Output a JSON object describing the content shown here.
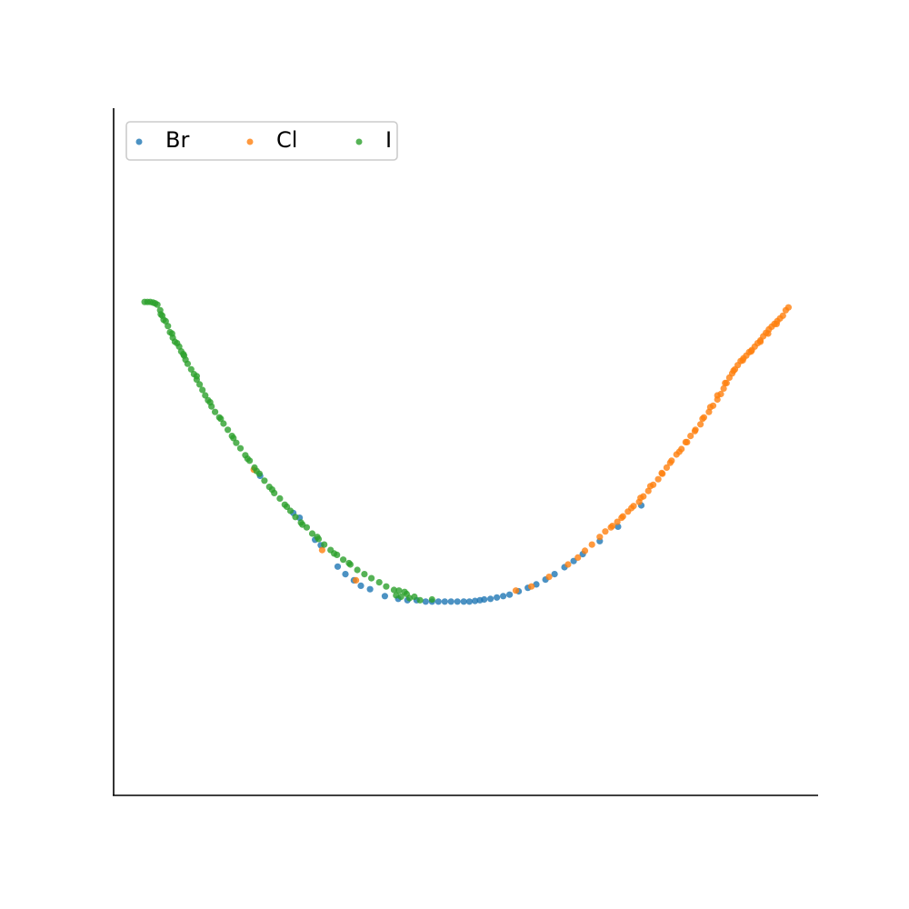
{
  "chart_data": {
    "type": "scatter",
    "title": "",
    "xlabel": "",
    "ylabel": "",
    "xlim": [
      0,
      1
    ],
    "ylim": [
      0,
      1
    ],
    "grid": false,
    "show_ticks": false,
    "legend": {
      "placement": "top-left",
      "columns": 3
    },
    "series": [
      {
        "name": "Br",
        "color": "#1f77b4",
        "points": [
          [
            0.208,
            0.465
          ],
          [
            0.255,
            0.411
          ],
          [
            0.286,
            0.372
          ],
          [
            0.318,
            0.333
          ],
          [
            0.329,
            0.322
          ],
          [
            0.351,
            0.305
          ],
          [
            0.385,
            0.29
          ],
          [
            0.404,
            0.286
          ],
          [
            0.417,
            0.284
          ],
          [
            0.43,
            0.284
          ],
          [
            0.443,
            0.282
          ],
          [
            0.452,
            0.282
          ],
          [
            0.461,
            0.282
          ],
          [
            0.47,
            0.282
          ],
          [
            0.479,
            0.282
          ],
          [
            0.488,
            0.282
          ],
          [
            0.497,
            0.282
          ],
          [
            0.513,
            0.283
          ],
          [
            0.52,
            0.284
          ],
          [
            0.526,
            0.285
          ],
          [
            0.535,
            0.286
          ],
          [
            0.544,
            0.288
          ],
          [
            0.553,
            0.29
          ],
          [
            0.562,
            0.292
          ],
          [
            0.575,
            0.297
          ],
          [
            0.588,
            0.302
          ],
          [
            0.6,
            0.307
          ],
          [
            0.613,
            0.314
          ],
          [
            0.626,
            0.322
          ],
          [
            0.64,
            0.332
          ],
          [
            0.653,
            0.341
          ],
          [
            0.666,
            0.351
          ],
          [
            0.69,
            0.37
          ],
          [
            0.716,
            0.391
          ],
          [
            0.749,
            0.422
          ],
          [
            0.264,
            0.404
          ],
          [
            0.294,
            0.364
          ],
          [
            0.341,
            0.313
          ],
          [
            0.364,
            0.3
          ],
          [
            0.505,
            0.282
          ]
        ]
      },
      {
        "name": "Cl",
        "color": "#ff7f0e",
        "points": [
          [
            0.199,
            0.474
          ],
          [
            0.296,
            0.357
          ],
          [
            0.344,
            0.313
          ],
          [
            0.571,
            0.298
          ],
          [
            0.593,
            0.304
          ],
          [
            0.618,
            0.318
          ],
          [
            0.645,
            0.336
          ],
          [
            0.659,
            0.346
          ],
          [
            0.669,
            0.356
          ],
          [
            0.679,
            0.365
          ],
          [
            0.69,
            0.376
          ],
          [
            0.698,
            0.384
          ],
          [
            0.708,
            0.392
          ],
          [
            0.715,
            0.398
          ],
          [
            0.723,
            0.406
          ],
          [
            0.73,
            0.413
          ],
          [
            0.738,
            0.421
          ],
          [
            0.746,
            0.427
          ],
          [
            0.752,
            0.435
          ],
          [
            0.759,
            0.443
          ],
          [
            0.766,
            0.452
          ],
          [
            0.773,
            0.46
          ],
          [
            0.779,
            0.468
          ],
          [
            0.785,
            0.477
          ],
          [
            0.792,
            0.487
          ],
          [
            0.799,
            0.496
          ],
          [
            0.806,
            0.504
          ],
          [
            0.812,
            0.514
          ],
          [
            0.819,
            0.523
          ],
          [
            0.826,
            0.532
          ],
          [
            0.833,
            0.54
          ],
          [
            0.838,
            0.55
          ],
          [
            0.845,
            0.558
          ],
          [
            0.851,
            0.567
          ],
          [
            0.857,
            0.576
          ],
          [
            0.862,
            0.584
          ],
          [
            0.866,
            0.592
          ],
          [
            0.87,
            0.6
          ],
          [
            0.874,
            0.608
          ],
          [
            0.878,
            0.614
          ],
          [
            0.882,
            0.62
          ],
          [
            0.886,
            0.626
          ],
          [
            0.89,
            0.632
          ],
          [
            0.894,
            0.636
          ],
          [
            0.898,
            0.64
          ],
          [
            0.902,
            0.645
          ],
          [
            0.906,
            0.648
          ],
          [
            0.91,
            0.653
          ],
          [
            0.914,
            0.658
          ],
          [
            0.918,
            0.662
          ],
          [
            0.922,
            0.668
          ],
          [
            0.926,
            0.673
          ],
          [
            0.93,
            0.678
          ],
          [
            0.934,
            0.682
          ],
          [
            0.938,
            0.686
          ],
          [
            0.942,
            0.69
          ],
          [
            0.946,
            0.694
          ],
          [
            0.95,
            0.698
          ],
          [
            0.954,
            0.706
          ],
          [
            0.958,
            0.71
          ],
          [
            0.941,
            0.686
          ],
          [
            0.929,
            0.672
          ],
          [
            0.918,
            0.66
          ],
          [
            0.905,
            0.646
          ],
          [
            0.893,
            0.633
          ],
          [
            0.88,
            0.618
          ],
          [
            0.868,
            0.6
          ],
          [
            0.857,
            0.582
          ],
          [
            0.847,
            0.565
          ],
          [
            0.836,
            0.548
          ],
          [
            0.825,
            0.53
          ],
          [
            0.814,
            0.514
          ],
          [
            0.803,
            0.5
          ],
          [
            0.79,
            0.484
          ],
          [
            0.778,
            0.469
          ],
          [
            0.762,
            0.45
          ],
          [
            0.748,
            0.433
          ],
          [
            0.735,
            0.418
          ],
          [
            0.721,
            0.404
          ],
          [
            0.706,
            0.39
          ]
        ]
      },
      {
        "name": "I",
        "color": "#2ca02c",
        "points": [
          [
            0.044,
            0.718
          ],
          [
            0.048,
            0.718
          ],
          [
            0.052,
            0.718
          ],
          [
            0.056,
            0.717
          ],
          [
            0.059,
            0.716
          ],
          [
            0.062,
            0.714
          ],
          [
            0.066,
            0.706
          ],
          [
            0.069,
            0.698
          ],
          [
            0.071,
            0.692
          ],
          [
            0.074,
            0.69
          ],
          [
            0.077,
            0.683
          ],
          [
            0.08,
            0.674
          ],
          [
            0.084,
            0.666
          ],
          [
            0.087,
            0.66
          ],
          [
            0.09,
            0.658
          ],
          [
            0.093,
            0.653
          ],
          [
            0.096,
            0.646
          ],
          [
            0.099,
            0.642
          ],
          [
            0.102,
            0.634
          ],
          [
            0.105,
            0.628
          ],
          [
            0.11,
            0.62
          ],
          [
            0.114,
            0.613
          ],
          [
            0.118,
            0.605
          ],
          [
            0.122,
            0.598
          ],
          [
            0.126,
            0.59
          ],
          [
            0.13,
            0.582
          ],
          [
            0.134,
            0.575
          ],
          [
            0.139,
            0.566
          ],
          [
            0.144,
            0.558
          ],
          [
            0.15,
            0.55
          ],
          [
            0.156,
            0.541
          ],
          [
            0.162,
            0.532
          ],
          [
            0.168,
            0.523
          ],
          [
            0.174,
            0.513
          ],
          [
            0.18,
            0.505
          ],
          [
            0.187,
            0.495
          ],
          [
            0.193,
            0.487
          ],
          [
            0.2,
            0.477
          ],
          [
            0.207,
            0.468
          ],
          [
            0.214,
            0.458
          ],
          [
            0.221,
            0.449
          ],
          [
            0.228,
            0.44
          ],
          [
            0.236,
            0.432
          ],
          [
            0.243,
            0.423
          ],
          [
            0.251,
            0.414
          ],
          [
            0.258,
            0.405
          ],
          [
            0.266,
            0.397
          ],
          [
            0.274,
            0.39
          ],
          [
            0.282,
            0.381
          ],
          [
            0.291,
            0.373
          ],
          [
            0.299,
            0.365
          ],
          [
            0.308,
            0.357
          ],
          [
            0.317,
            0.35
          ],
          [
            0.326,
            0.343
          ],
          [
            0.336,
            0.336
          ],
          [
            0.346,
            0.328
          ],
          [
            0.356,
            0.322
          ],
          [
            0.366,
            0.316
          ],
          [
            0.377,
            0.31
          ],
          [
            0.387,
            0.304
          ],
          [
            0.398,
            0.299
          ],
          [
            0.401,
            0.291
          ],
          [
            0.408,
            0.289
          ],
          [
            0.416,
            0.293
          ],
          [
            0.42,
            0.287
          ],
          [
            0.427,
            0.289
          ],
          [
            0.435,
            0.284
          ],
          [
            0.452,
            0.285
          ],
          [
            0.405,
            0.298
          ],
          [
            0.413,
            0.296
          ],
          [
            0.067,
            0.7
          ],
          [
            0.083,
            0.672
          ],
          [
            0.1,
            0.64
          ],
          [
            0.118,
            0.61
          ],
          [
            0.137,
            0.572
          ],
          [
            0.152,
            0.548
          ],
          [
            0.17,
            0.52
          ],
          [
            0.19,
            0.49
          ],
          [
            0.203,
            0.472
          ],
          [
            0.225,
            0.445
          ],
          [
            0.246,
            0.42
          ],
          [
            0.268,
            0.394
          ],
          [
            0.289,
            0.376
          ],
          [
            0.313,
            0.352
          ],
          [
            0.334,
            0.338
          ]
        ]
      }
    ]
  }
}
